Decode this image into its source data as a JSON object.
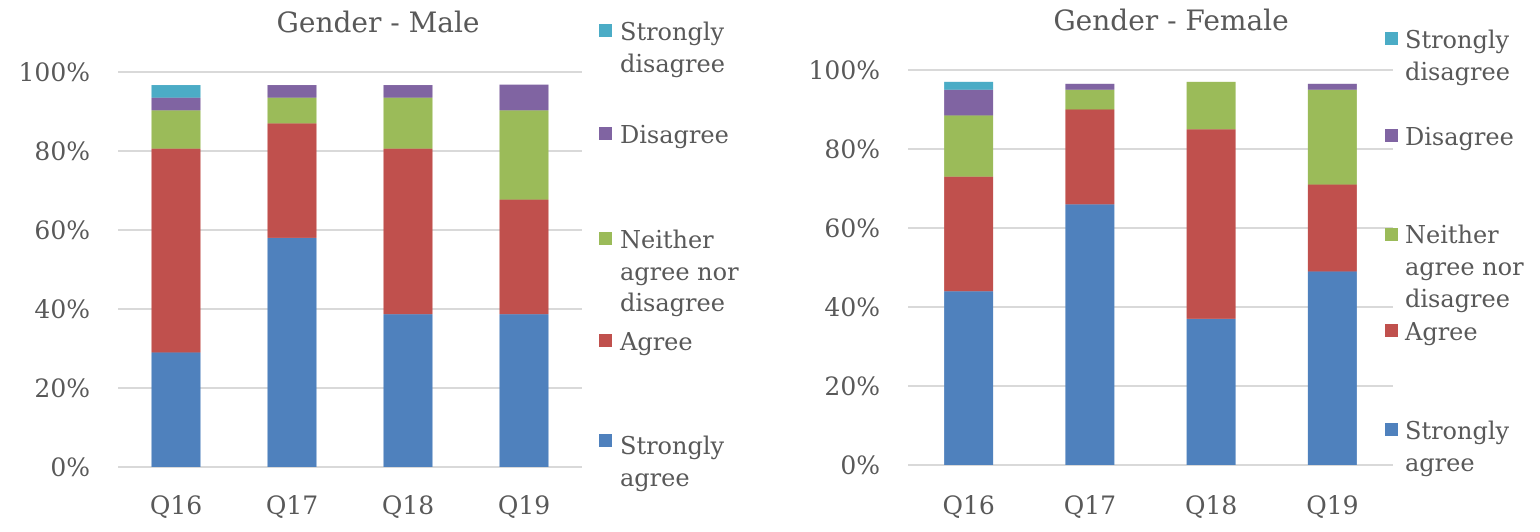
{
  "chart_data": [
    {
      "type": "bar",
      "stacked": true,
      "title": "Gender - Male",
      "categories": [
        "Q16",
        "Q17",
        "Q18",
        "Q19"
      ],
      "ylim": [
        0,
        100
      ],
      "yticks": [
        "0%",
        "20%",
        "40%",
        "60%",
        "80%",
        "100%"
      ],
      "grid": true,
      "legend_position": "right",
      "series": [
        {
          "name": "Strongly agree",
          "color": "#4F81BD",
          "values": [
            29,
            58,
            38.7,
            38.7
          ]
        },
        {
          "name": "Agree",
          "color": "#C0504D",
          "values": [
            51.6,
            29,
            41.9,
            29
          ]
        },
        {
          "name": "Neither agree nor disagree",
          "color": "#9BBB59",
          "values": [
            9.7,
            6.5,
            12.9,
            22.6
          ]
        },
        {
          "name": "Disagree",
          "color": "#8064A2",
          "values": [
            3.2,
            3.2,
            3.2,
            6.5
          ]
        },
        {
          "name": "Strongly disagree",
          "color": "#4BACC6",
          "values": [
            3.2,
            0,
            0,
            0
          ]
        }
      ]
    },
    {
      "type": "bar",
      "stacked": true,
      "title": "Gender - Female",
      "categories": [
        "Q16",
        "Q17",
        "Q18",
        "Q19"
      ],
      "ylim": [
        0,
        100
      ],
      "yticks": [
        "0%",
        "20%",
        "40%",
        "60%",
        "80%",
        "100%"
      ],
      "grid": true,
      "legend_position": "right",
      "series": [
        {
          "name": "Strongly agree",
          "color": "#4F81BD",
          "values": [
            44,
            66,
            37,
            49
          ]
        },
        {
          "name": "Agree",
          "color": "#C0504D",
          "values": [
            29,
            24,
            48,
            22
          ]
        },
        {
          "name": "Neither agree nor disagree",
          "color": "#9BBB59",
          "values": [
            15.5,
            5,
            12,
            24
          ]
        },
        {
          "name": "Disagree",
          "color": "#8064A2",
          "values": [
            6.5,
            1.5,
            0,
            1.5
          ]
        },
        {
          "name": "Strongly disagree",
          "color": "#4BACC6",
          "values": [
            2,
            0,
            0,
            0
          ]
        }
      ]
    }
  ]
}
